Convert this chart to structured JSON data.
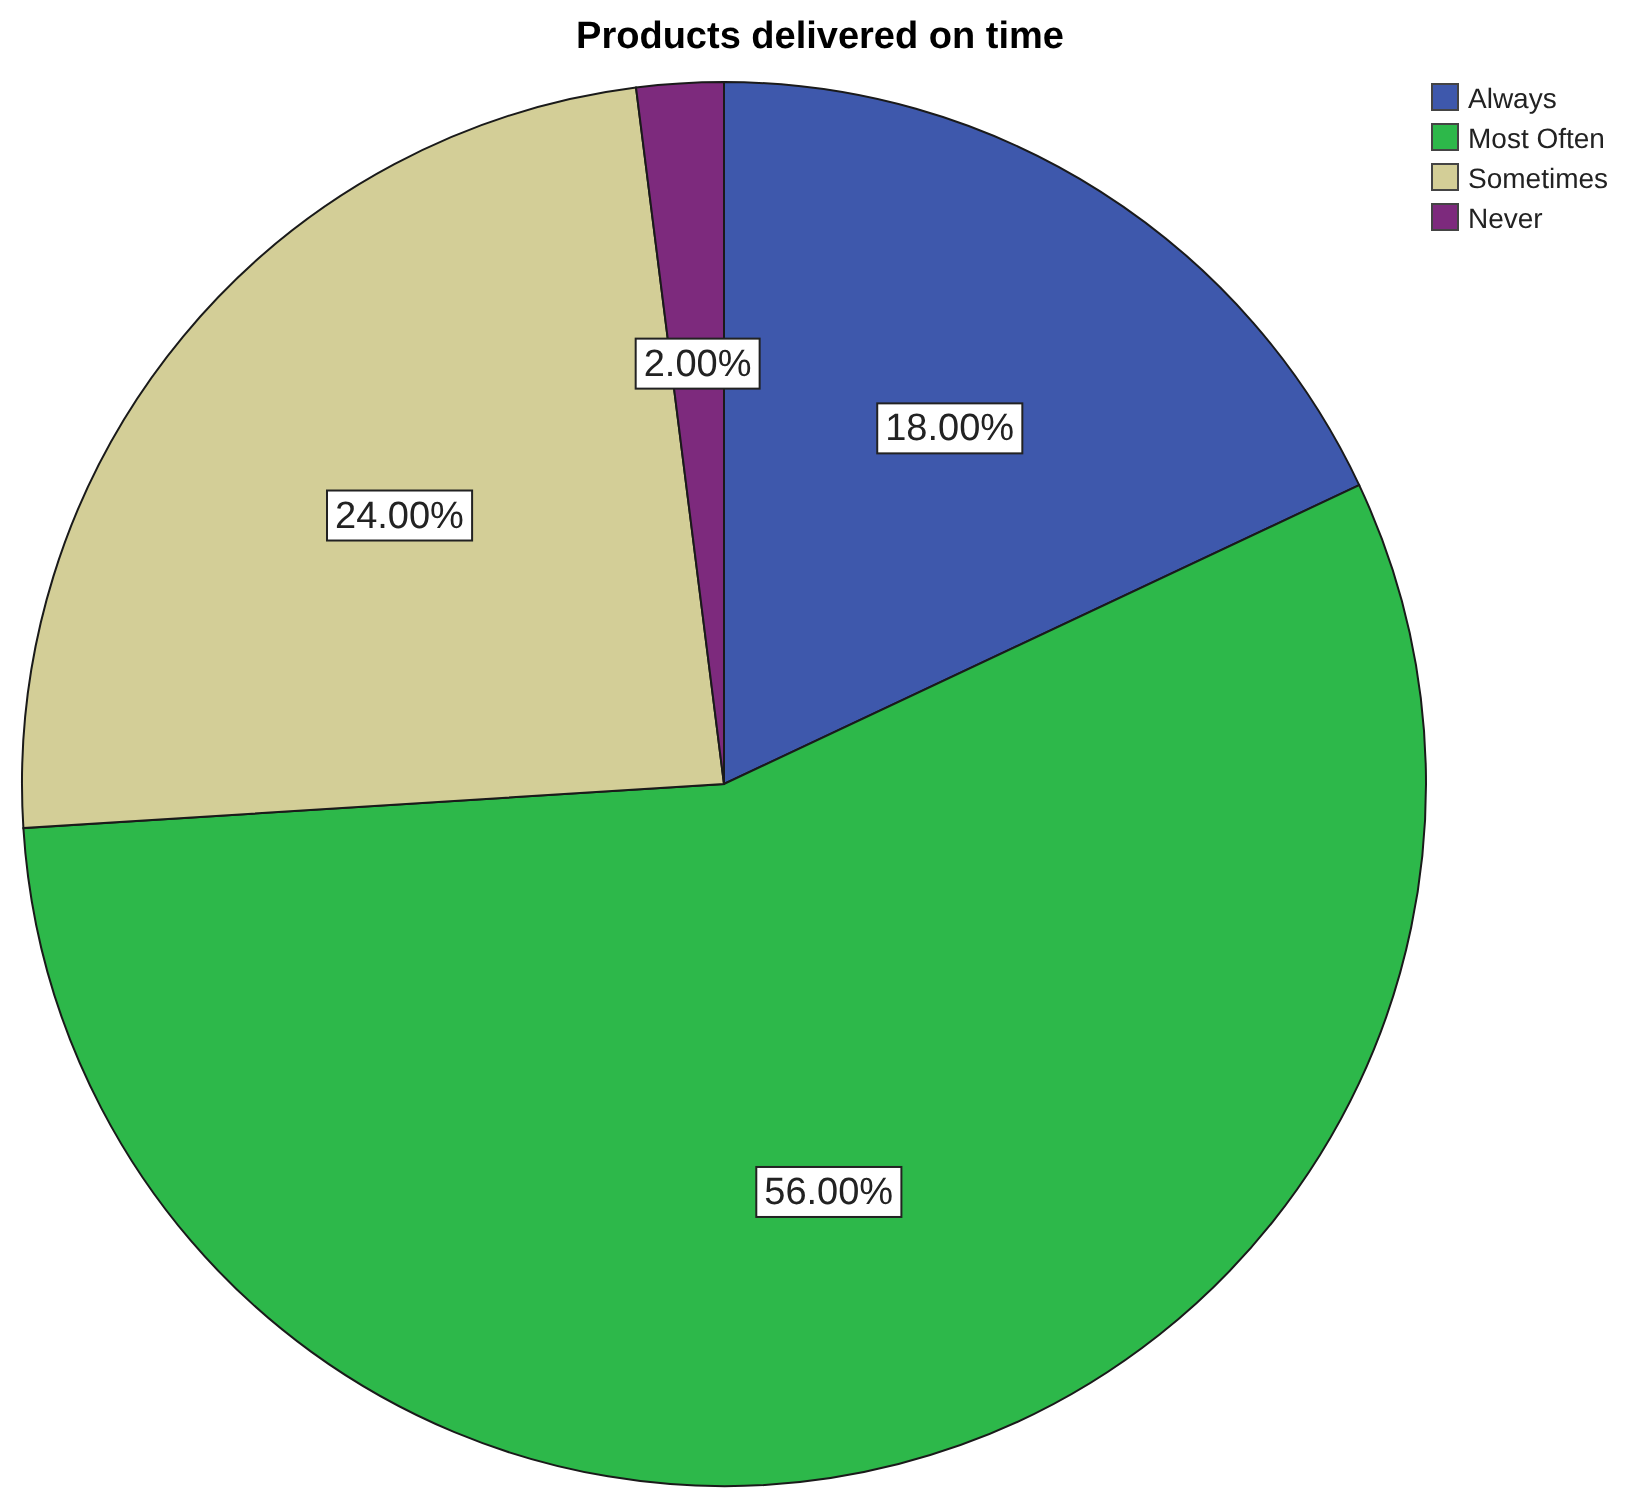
{
  "chart_data": {
    "type": "pie",
    "title": "Products delivered on time",
    "categories": [
      "Always",
      "Most Often",
      "Sometimes",
      "Never"
    ],
    "values": [
      18,
      56,
      24,
      2
    ],
    "colors": [
      "#3e58ac",
      "#2db84a",
      "#d3ce97",
      "#7d2a7d"
    ],
    "value_labels": [
      "18.00%",
      "56.00%",
      "24.00%",
      "2.00%"
    ],
    "legend": "top right"
  }
}
